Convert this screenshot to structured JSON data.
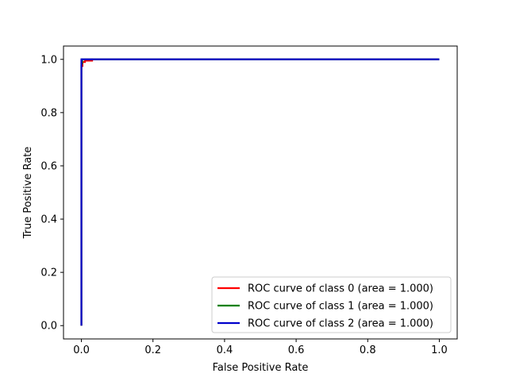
{
  "chart_data": {
    "type": "line",
    "title": "",
    "xlabel": "False Positive Rate",
    "ylabel": "True Positive Rate",
    "xlim": [
      -0.05,
      1.05
    ],
    "ylim": [
      -0.05,
      1.05
    ],
    "xticks": [
      0.0,
      0.2,
      0.4,
      0.6,
      0.8,
      1.0
    ],
    "xtick_labels": [
      "0.0",
      "0.2",
      "0.4",
      "0.6",
      "0.8",
      "1.0"
    ],
    "yticks": [
      0.0,
      0.2,
      0.4,
      0.6,
      0.8,
      1.0
    ],
    "ytick_labels": [
      "0.0",
      "0.2",
      "0.4",
      "0.6",
      "0.8",
      "1.0"
    ],
    "grid": false,
    "legend_position": "lower-right",
    "series": [
      {
        "name": "ROC curve of class 0 (area = 1.000)",
        "color": "#ff0000",
        "x": [
          0.0,
          0.0,
          0.003,
          0.003,
          0.01,
          0.01,
          0.03,
          0.03,
          1.0
        ],
        "y": [
          0.0,
          0.975,
          0.975,
          0.99,
          0.99,
          0.995,
          0.995,
          1.0,
          1.0
        ]
      },
      {
        "name": "ROC curve of class 1 (area = 1.000)",
        "color": "#008000",
        "x": [
          0.0,
          0.0,
          0.002,
          0.002,
          1.0
        ],
        "y": [
          0.0,
          0.985,
          0.985,
          1.0,
          1.0
        ]
      },
      {
        "name": "ROC curve of class 2 (area = 1.000)",
        "color": "#0000cc",
        "x": [
          0.0,
          0.0,
          1.0
        ],
        "y": [
          0.0,
          1.0,
          1.0
        ]
      }
    ]
  }
}
